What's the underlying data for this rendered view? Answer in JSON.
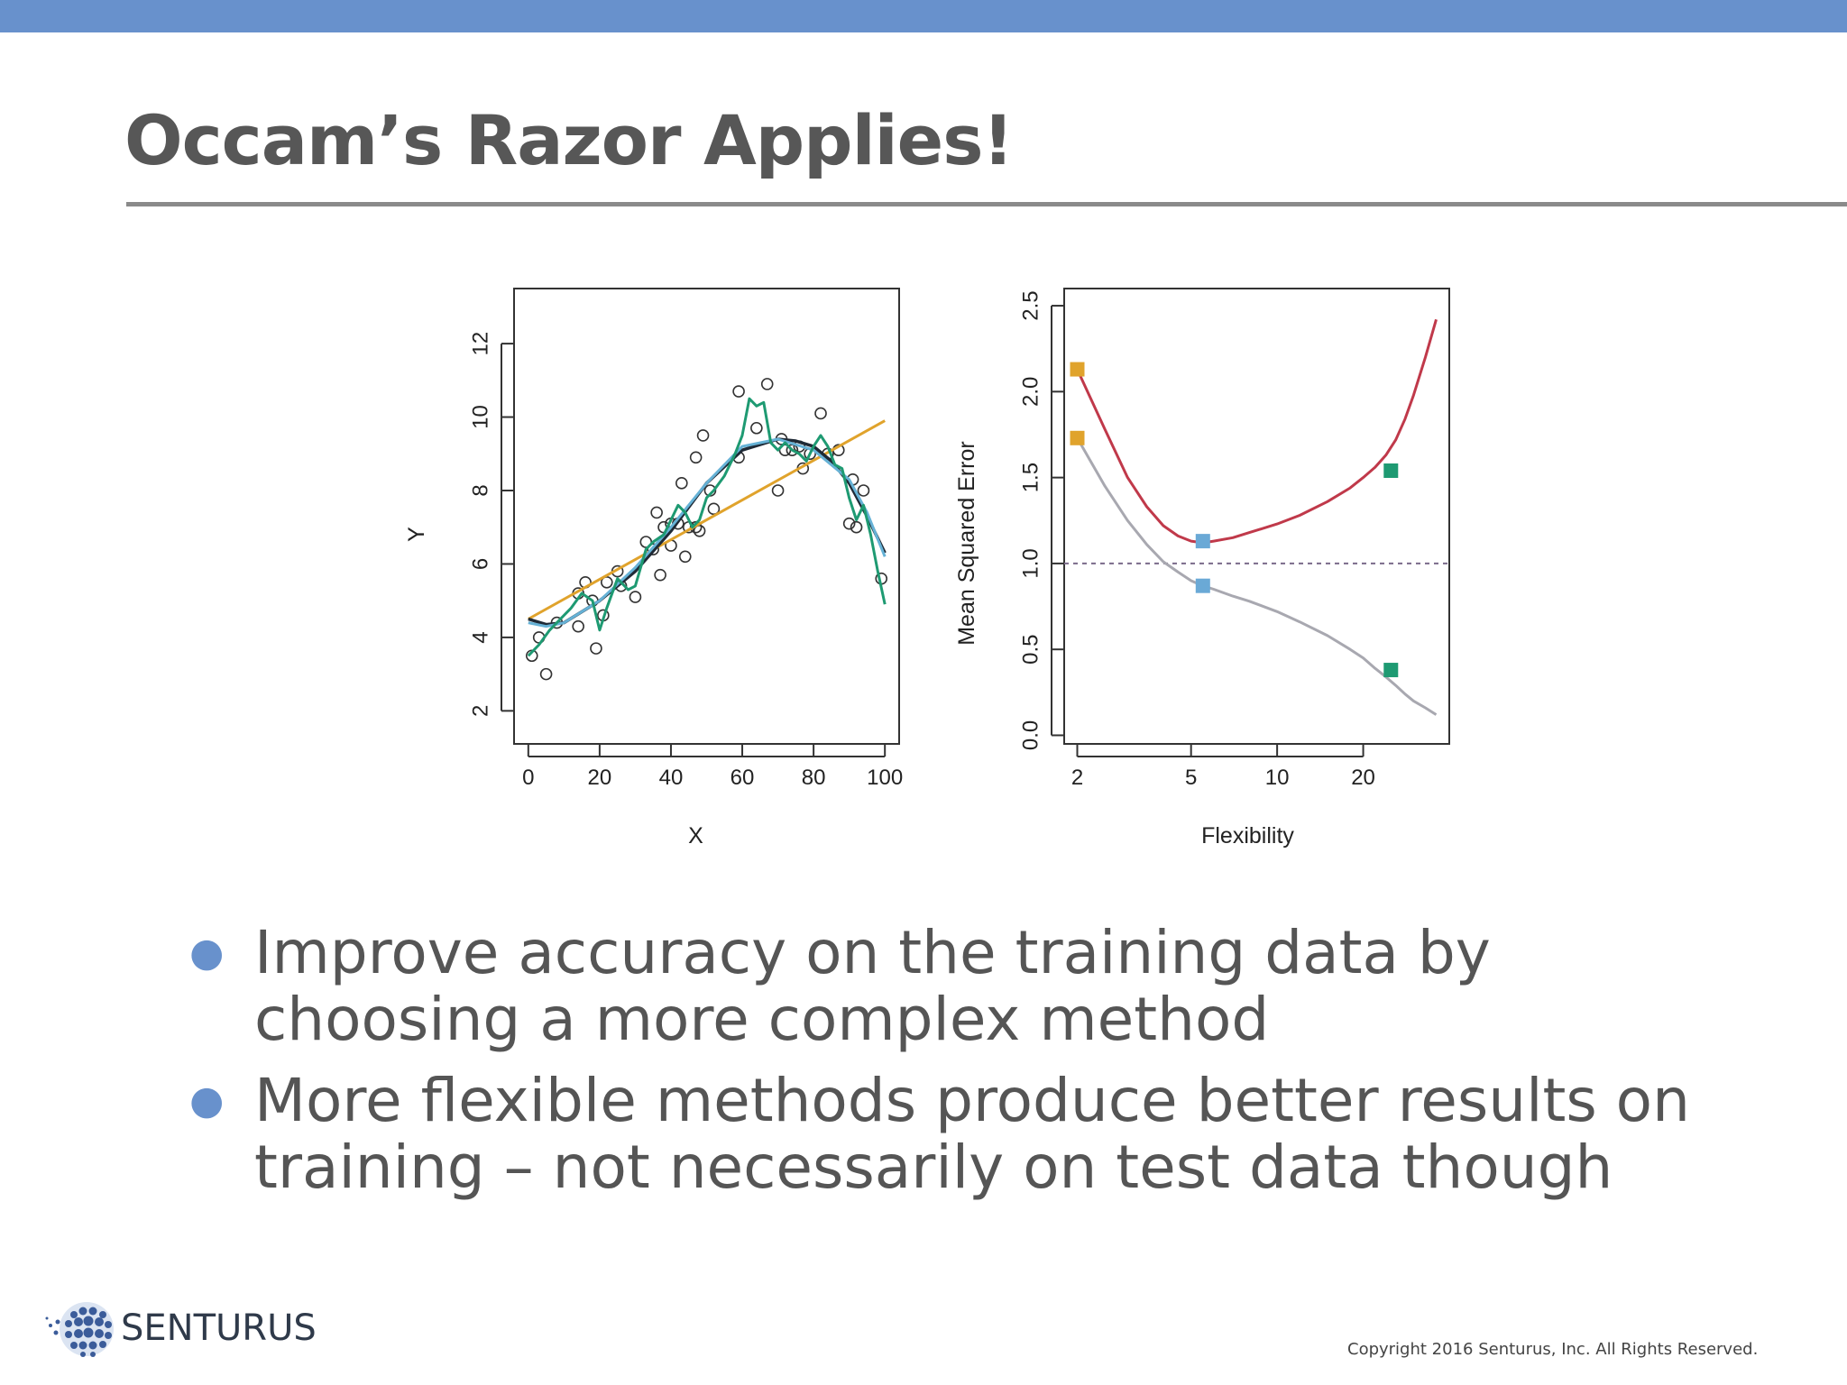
{
  "slide": {
    "title": "Occam’s Razor Applies!",
    "bullets": [
      "Improve accuracy on the training data by choosing a more complex method",
      "More flexible methods produce better results on training – not necessarily on test data though"
    ],
    "logo_text": "SENTURUS",
    "copyright": "Copyright 2016 Senturus, Inc. All Rights Reserved.",
    "accent_color": "#6891cc"
  },
  "chart_data": [
    {
      "type": "scatter",
      "title": "",
      "xlabel": "X",
      "ylabel": "Y",
      "xlim": [
        -4,
        104
      ],
      "ylim": [
        1.1,
        13.5
      ],
      "xticks": [
        0,
        20,
        40,
        60,
        80,
        100
      ],
      "yticks": [
        2,
        4,
        6,
        8,
        10,
        12
      ],
      "grid": false,
      "points": [
        [
          1,
          3.5
        ],
        [
          3,
          4
        ],
        [
          5,
          3
        ],
        [
          8,
          4.4
        ],
        [
          14,
          5.2
        ],
        [
          14,
          4.3
        ],
        [
          16,
          5.5
        ],
        [
          18,
          5
        ],
        [
          19,
          3.7
        ],
        [
          21,
          4.6
        ],
        [
          22,
          5.5
        ],
        [
          25,
          5.8
        ],
        [
          26,
          5.4
        ],
        [
          30,
          5.1
        ],
        [
          33,
          6.6
        ],
        [
          35,
          6.4
        ],
        [
          36,
          7.4
        ],
        [
          37,
          5.7
        ],
        [
          38,
          7
        ],
        [
          40,
          7.1
        ],
        [
          40,
          6.5
        ],
        [
          42,
          7.1
        ],
        [
          43,
          8.2
        ],
        [
          44,
          6.2
        ],
        [
          45,
          7
        ],
        [
          47,
          8.9
        ],
        [
          47,
          7
        ],
        [
          48,
          6.9
        ],
        [
          49,
          9.5
        ],
        [
          51,
          8
        ],
        [
          52,
          7.5
        ],
        [
          59,
          8.9
        ],
        [
          59,
          10.7
        ],
        [
          64,
          9.7
        ],
        [
          67,
          10.9
        ],
        [
          70,
          8
        ],
        [
          71,
          9.4
        ],
        [
          72,
          9.1
        ],
        [
          74,
          9.1
        ],
        [
          76,
          9.2
        ],
        [
          77,
          8.6
        ],
        [
          79,
          9
        ],
        [
          82,
          10.1
        ],
        [
          84,
          9
        ],
        [
          87,
          9.1
        ],
        [
          90,
          7.1
        ],
        [
          91,
          8.3
        ],
        [
          92,
          7
        ],
        [
          94,
          8
        ],
        [
          99,
          5.6
        ]
      ],
      "series": [
        {
          "color": "#e0a32c",
          "x": [
            0,
            100
          ],
          "y": [
            4.5,
            9.9
          ]
        },
        {
          "color": "#1f2a36",
          "x": [
            0,
            5,
            10,
            20,
            30,
            40,
            50,
            60,
            70,
            75,
            80,
            85,
            90,
            95,
            100
          ],
          "y": [
            4.5,
            4.35,
            4.4,
            5,
            5.8,
            6.9,
            8.2,
            9.1,
            9.4,
            9.35,
            9.2,
            8.8,
            8.2,
            7.3,
            6.3
          ]
        },
        {
          "color": "#66b2d6",
          "x": [
            0,
            5,
            10,
            20,
            30,
            40,
            50,
            60,
            70,
            80,
            90,
            95,
            100
          ],
          "y": [
            4.4,
            4.3,
            4.4,
            5,
            5.9,
            7,
            8.2,
            9.2,
            9.4,
            9.1,
            8.3,
            7.4,
            6.2
          ]
        },
        {
          "color": "#1e9a72",
          "x": [
            0,
            3,
            6,
            9,
            12,
            15,
            18,
            20,
            22,
            25,
            28,
            30,
            33,
            35,
            38,
            40,
            42,
            44,
            46,
            48,
            50,
            52,
            55,
            58,
            60,
            62,
            64,
            66,
            68,
            70,
            72,
            74,
            76,
            78,
            80,
            82,
            84,
            86,
            88,
            90,
            92,
            94,
            96,
            98,
            100
          ],
          "y": [
            3.5,
            3.8,
            4.2,
            4.5,
            4.8,
            5.2,
            5,
            4.2,
            4.8,
            5.6,
            5.3,
            5.4,
            6.4,
            6.6,
            6.8,
            7.2,
            7.6,
            7.4,
            7,
            7.2,
            7.8,
            8,
            8.4,
            9,
            9.5,
            10.5,
            10.3,
            10.4,
            9.3,
            9.1,
            9.3,
            9.1,
            9,
            8.8,
            9.2,
            9.5,
            9.2,
            8.7,
            8.6,
            7.8,
            7.2,
            7.6,
            6.8,
            5.8,
            4.9
          ]
        }
      ]
    },
    {
      "type": "line",
      "title": "",
      "xlabel": "Flexibility",
      "ylabel": "Mean Squared Error",
      "xscale": "log",
      "xlim": [
        1.8,
        40
      ],
      "ylim": [
        -0.05,
        2.6
      ],
      "xticks": [
        2,
        5,
        10,
        20
      ],
      "yticks": [
        "0.0",
        "0.5",
        "1.0",
        "1.5",
        "2.0",
        "2.5"
      ],
      "grid": false,
      "reference_line": {
        "y": 1.0,
        "style": "dotted",
        "color": "#7a6a8a"
      },
      "series": [
        {
          "color": "#c0394a",
          "x": [
            2,
            2.5,
            3,
            3.5,
            4,
            4.5,
            5,
            5.5,
            6,
            7,
            8,
            10,
            12,
            15,
            18,
            20,
            22,
            24,
            26,
            28,
            30,
            33,
            36
          ],
          "y": [
            2.13,
            1.78,
            1.5,
            1.33,
            1.22,
            1.16,
            1.13,
            1.12,
            1.13,
            1.15,
            1.18,
            1.23,
            1.28,
            1.36,
            1.44,
            1.5,
            1.56,
            1.63,
            1.72,
            1.84,
            1.98,
            2.2,
            2.42
          ]
        },
        {
          "color": "#a8a8b0",
          "x": [
            2,
            2.5,
            3,
            3.5,
            4,
            4.5,
            5,
            5.5,
            6,
            7,
            8,
            10,
            12,
            15,
            18,
            20,
            22,
            24,
            26,
            28,
            30,
            33,
            36
          ],
          "y": [
            1.73,
            1.45,
            1.25,
            1.11,
            1.01,
            0.95,
            0.9,
            0.87,
            0.85,
            0.81,
            0.78,
            0.72,
            0.66,
            0.58,
            0.5,
            0.45,
            0.39,
            0.34,
            0.29,
            0.24,
            0.2,
            0.16,
            0.12
          ]
        }
      ],
      "markers": [
        {
          "x": 2,
          "y": 2.13,
          "color": "#e0a32c"
        },
        {
          "x": 2,
          "y": 1.73,
          "color": "#e0a32c"
        },
        {
          "x": 5.5,
          "y": 1.13,
          "color": "#6aa9d6"
        },
        {
          "x": 5.5,
          "y": 0.87,
          "color": "#6aa9d6"
        },
        {
          "x": 25,
          "y": 1.54,
          "color": "#1e9a72"
        },
        {
          "x": 25,
          "y": 0.38,
          "color": "#1e9a72"
        }
      ]
    }
  ]
}
